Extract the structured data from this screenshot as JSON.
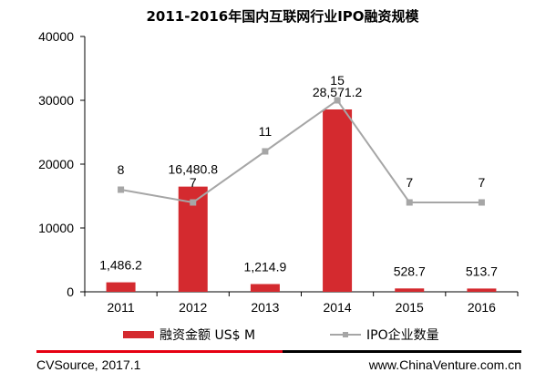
{
  "chart_data": {
    "type": "bar",
    "title": "2011-2016年国内互联网行业IPO融资规模",
    "categories": [
      "2011",
      "2012",
      "2013",
      "2014",
      "2015",
      "2016"
    ],
    "series": [
      {
        "name": "融资金额 US$ M",
        "type": "bar",
        "axis": "left",
        "values": [
          1486.2,
          16480.8,
          1214.9,
          28571.2,
          528.7,
          513.7
        ],
        "labels": [
          "1,486.2",
          "16,480.8",
          "1,214.9",
          "28,571.2",
          "528.7",
          "513.7"
        ],
        "color": "#d42a2f"
      },
      {
        "name": "IPO企业数量",
        "type": "line",
        "axis": "right-hidden",
        "values": [
          8,
          7,
          11,
          15,
          7,
          7
        ],
        "labels": [
          "8",
          "7",
          "11",
          "15",
          "7",
          "7"
        ],
        "color": "#a6a6a6"
      }
    ],
    "yticks": [
      "0",
      "10000",
      "20000",
      "30000",
      "40000"
    ],
    "ylim": [
      0,
      40000
    ],
    "y2lim": [
      0,
      20
    ],
    "grid": false,
    "legend_position": "bottom"
  },
  "footer": {
    "source": "CVSource, 2017.1",
    "site": "www.ChinaVenture.com.cn"
  },
  "colors": {
    "footer_red": "#e60012",
    "footer_black": "#000000"
  }
}
